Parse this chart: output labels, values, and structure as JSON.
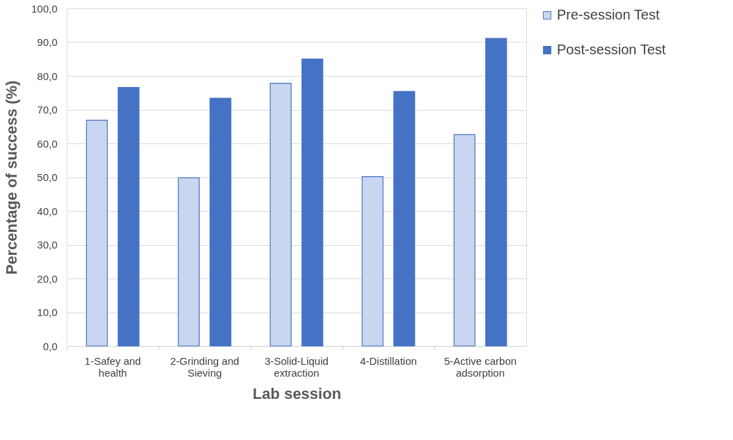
{
  "chart_data": {
    "type": "bar",
    "xlabel": "Lab session",
    "ylabel": "Percentage of success (%)",
    "categories": [
      "1-Safey and health",
      "2-Grinding and Sieving",
      "3-Solid-Liquid extraction",
      "4-Distillation",
      "5-Active carbon adsorption"
    ],
    "series": [
      {
        "name": "Pre-session Test",
        "color": "#c9d6ef",
        "values": [
          66.9,
          49.8,
          77.8,
          50.2,
          62.6
        ]
      },
      {
        "name": "Post-session Test",
        "color": "#4472c4",
        "values": [
          76.6,
          73.4,
          85.0,
          75.4,
          91.1
        ]
      }
    ],
    "ylim": [
      0,
      100
    ],
    "yticks": [
      {
        "value": 0,
        "label": "0,0"
      },
      {
        "value": 10,
        "label": "10,0"
      },
      {
        "value": 20,
        "label": "20,0"
      },
      {
        "value": 30,
        "label": "30,0"
      },
      {
        "value": 40,
        "label": "40,0"
      },
      {
        "value": 50,
        "label": "50,0"
      },
      {
        "value": 60,
        "label": "60,0"
      },
      {
        "value": 70,
        "label": "70,0"
      },
      {
        "value": 80,
        "label": "80,0"
      },
      {
        "value": 90,
        "label": "90,0"
      },
      {
        "value": 100,
        "label": "100,0"
      }
    ],
    "grid": "y",
    "legend": "right"
  }
}
